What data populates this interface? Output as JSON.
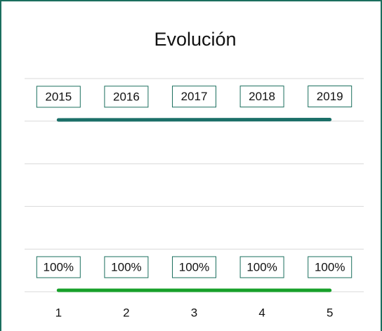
{
  "chart_data": {
    "type": "line",
    "title": "Evolución",
    "categories": [
      "1",
      "2",
      "3",
      "4",
      "5"
    ],
    "ylim": [
      0,
      15000
    ],
    "yticks": [
      0,
      3000,
      6000,
      9000,
      12000,
      15000
    ],
    "grid": true,
    "y2lim": [
      0,
      2500
    ],
    "series": [
      {
        "color": "#1b6f68",
        "axis": "y2",
        "values": [
          2015,
          2016,
          2017,
          2018,
          2019
        ],
        "value_labels": [
          "2015",
          "2016",
          "2017",
          "2018",
          "2019"
        ]
      },
      {
        "color": "#17a02a",
        "values": [
          100,
          100,
          100,
          100,
          100
        ],
        "value_labels": [
          "100%",
          "100%",
          "100%",
          "100%",
          "100%"
        ]
      }
    ]
  }
}
